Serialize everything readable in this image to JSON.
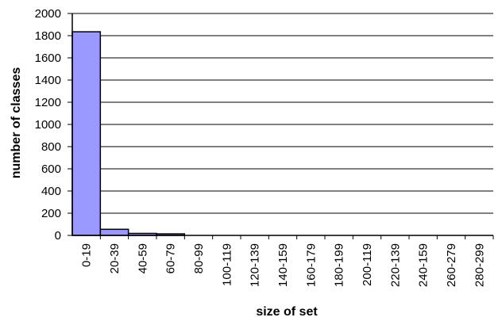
{
  "chart_data": {
    "type": "bar",
    "title": "",
    "xlabel": "size of set",
    "ylabel": "number of classes",
    "categories": [
      "0-19",
      "20-39",
      "40-59",
      "60-79",
      "80-99",
      "100-119",
      "120-139",
      "140-159",
      "160-179",
      "180-199",
      "200-119",
      "220-139",
      "240-159",
      "260-279",
      "280-299"
    ],
    "values": [
      1835,
      55,
      18,
      14,
      0,
      0,
      0,
      0,
      0,
      0,
      0,
      0,
      0,
      0,
      0
    ],
    "ylim": [
      0,
      2000
    ],
    "yticks": [
      0,
      200,
      400,
      600,
      800,
      1000,
      1200,
      1400,
      1600,
      1800,
      2000
    ],
    "grid": "horizontal",
    "legend": "none",
    "bar_color": "#9999ff",
    "bar_edge_color": "#000000"
  }
}
